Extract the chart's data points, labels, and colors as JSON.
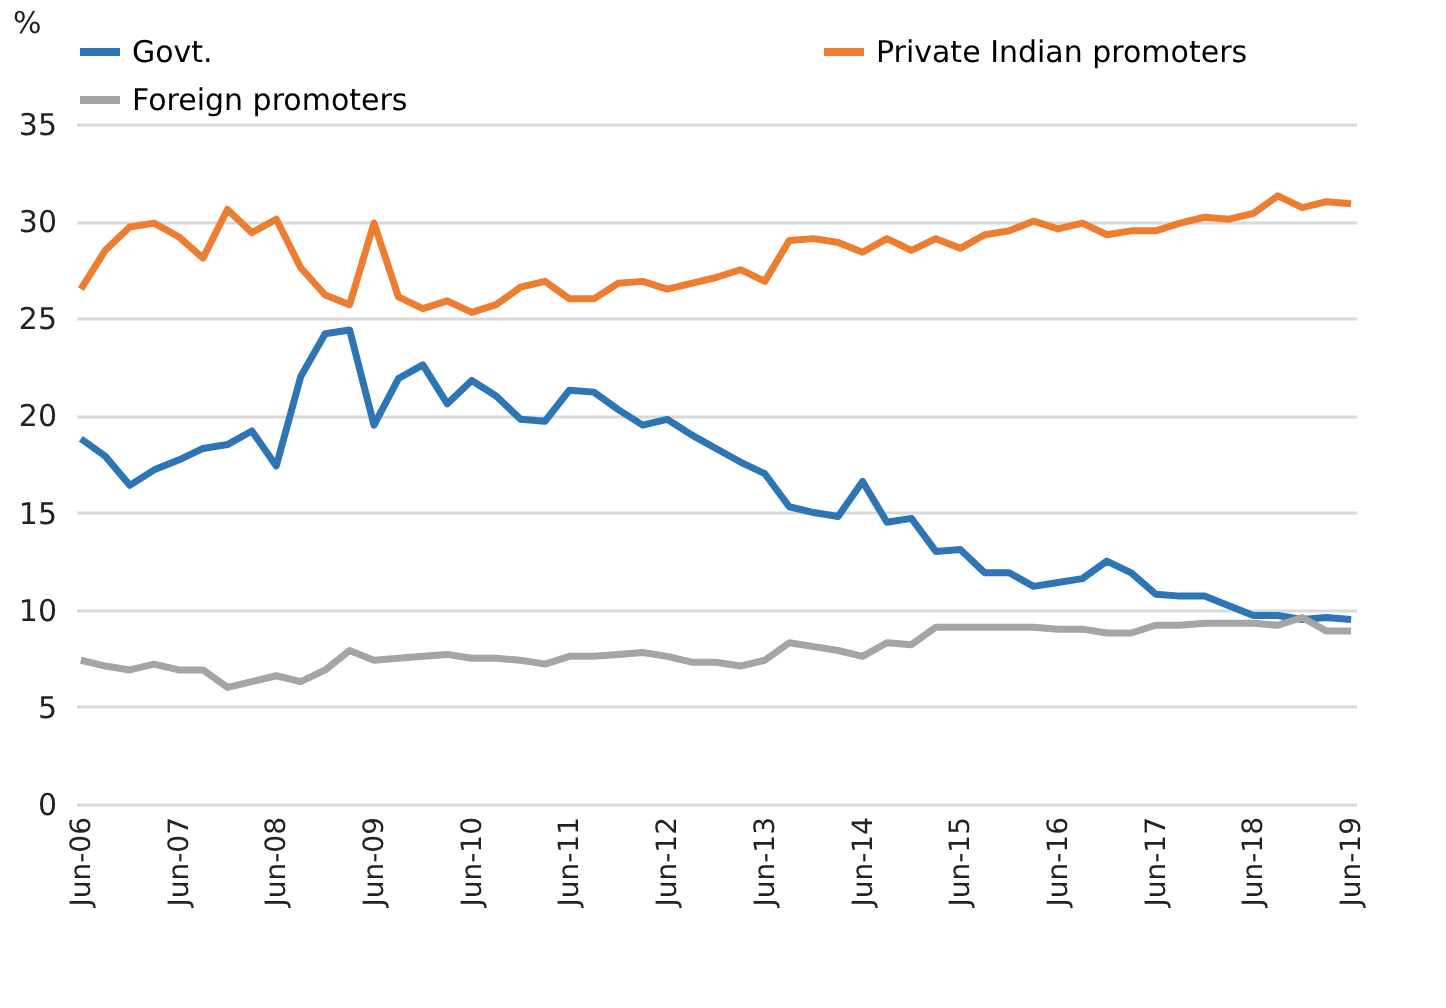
{
  "chart_data": {
    "type": "line",
    "ylabel": "%",
    "categories": [
      "Jun-06",
      null,
      null,
      null,
      "Jun-07",
      null,
      null,
      null,
      "Jun-08",
      null,
      null,
      null,
      "Jun-09",
      null,
      null,
      null,
      "Jun-10",
      null,
      null,
      null,
      "Jun-11",
      null,
      null,
      null,
      "Jun-12",
      null,
      null,
      null,
      "Jun-13",
      null,
      null,
      null,
      "Jun-14",
      null,
      null,
      null,
      "Jun-15",
      null,
      null,
      null,
      "Jun-16",
      null,
      null,
      null,
      "Jun-17",
      null,
      null,
      null,
      "Jun-18",
      null,
      null,
      null,
      "Jun-19"
    ],
    "series": [
      {
        "name": "Govt.",
        "color": "#2e75b6",
        "values": [
          18.8,
          17.9,
          16.4,
          17.2,
          17.7,
          18.3,
          18.5,
          19.2,
          17.4,
          22.0,
          24.2,
          24.4,
          19.5,
          21.9,
          22.6,
          20.6,
          21.8,
          21.0,
          19.8,
          19.7,
          21.3,
          21.2,
          20.3,
          19.5,
          19.8,
          19.0,
          18.3,
          17.6,
          17.0,
          15.3,
          15.0,
          14.8,
          16.6,
          14.5,
          14.7,
          13.0,
          13.1,
          11.9,
          11.9,
          11.2,
          11.4,
          11.6,
          12.5,
          11.9,
          10.8,
          10.7,
          10.7,
          10.2,
          9.7,
          9.7,
          9.5,
          9.6,
          9.5
        ]
      },
      {
        "name": "Private Indian promoters",
        "color": "#ed7d31",
        "values": [
          26.5,
          28.5,
          29.7,
          29.9,
          29.2,
          28.1,
          30.6,
          29.4,
          30.1,
          27.6,
          26.2,
          25.7,
          29.9,
          26.1,
          25.5,
          25.9,
          25.3,
          25.7,
          26.6,
          26.9,
          26.0,
          26.0,
          26.8,
          26.9,
          26.5,
          26.8,
          27.1,
          27.5,
          26.9,
          29.0,
          29.1,
          28.9,
          28.4,
          29.1,
          28.5,
          29.1,
          28.6,
          29.3,
          29.5,
          30.0,
          29.6,
          29.9,
          29.3,
          29.5,
          29.5,
          29.9,
          30.2,
          30.1,
          30.4,
          31.3,
          30.7,
          31.0,
          30.9
        ]
      },
      {
        "name": "Foreign promoters",
        "color": "#a5a5a5",
        "values": [
          7.4,
          7.1,
          6.9,
          7.2,
          6.9,
          6.9,
          6.0,
          6.3,
          6.6,
          6.3,
          6.9,
          7.9,
          7.4,
          7.5,
          7.6,
          7.7,
          7.5,
          7.5,
          7.4,
          7.2,
          7.6,
          7.6,
          7.7,
          7.8,
          7.6,
          7.3,
          7.3,
          7.1,
          7.4,
          8.3,
          8.1,
          7.9,
          7.6,
          8.3,
          8.2,
          9.1,
          9.1,
          9.1,
          9.1,
          9.1,
          9.0,
          9.0,
          8.8,
          8.8,
          9.2,
          9.2,
          9.3,
          9.3,
          9.3,
          9.2,
          9.6,
          8.9,
          8.9
        ]
      }
    ],
    "ylim": [
      0,
      35
    ],
    "yticks": [
      0,
      5,
      10,
      15,
      20,
      25,
      30,
      35
    ],
    "grid": "y",
    "legend": "top",
    "marker": "none",
    "line_style": "solid"
  }
}
